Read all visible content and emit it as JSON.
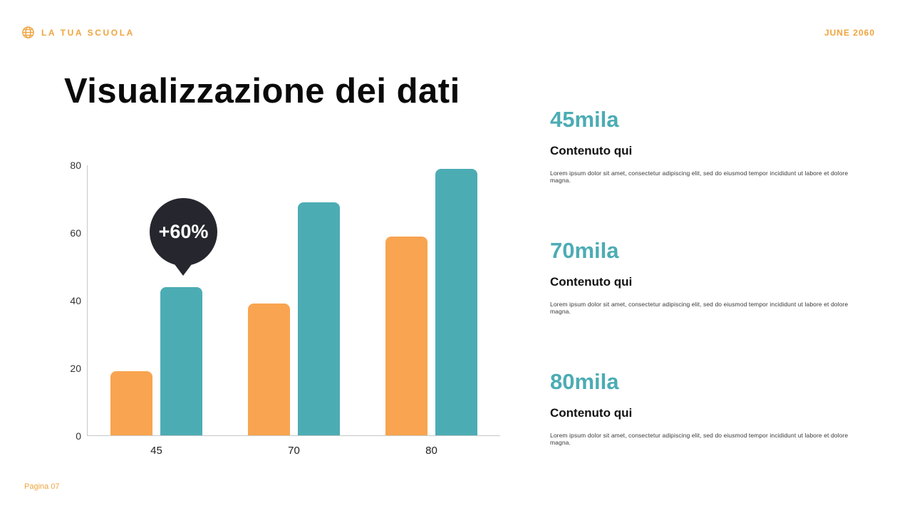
{
  "header": {
    "brand": "LA TUA SCUOLA",
    "date": "JUNE 2060"
  },
  "title": "Visualizzazione dei dati",
  "chart_data": {
    "type": "bar",
    "categories": [
      "45",
      "70",
      "80"
    ],
    "series": [
      {
        "name": "orange",
        "color": "#F9A450",
        "values": [
          19,
          39,
          59
        ]
      },
      {
        "name": "teal",
        "color": "#4CACB4",
        "values": [
          44,
          69,
          79
        ]
      }
    ],
    "title": "",
    "xlabel": "",
    "ylabel": "",
    "ylim": [
      0,
      80
    ],
    "yticks": [
      0,
      20,
      40,
      60,
      80
    ],
    "grid": false,
    "legend": "none",
    "annotation": {
      "label": "+60%",
      "target": "teal bar of category 45"
    }
  },
  "stats": [
    {
      "value": "45mila",
      "heading": "Contenuto qui",
      "body": "Lorem ipsum dolor sit amet, consectetur adipiscing elit, sed do eiusmod tempor incididunt ut labore et dolore magna."
    },
    {
      "value": "70mila",
      "heading": "Contenuto qui",
      "body": "Lorem ipsum dolor sit amet, consectetur adipiscing elit, sed do eiusmod tempor incididunt ut labore et dolore magna."
    },
    {
      "value": "80mila",
      "heading": "Contenuto qui",
      "body": "Lorem ipsum dolor sit amet, consectetur adipiscing elit, sed do eiusmod tempor incididunt ut labore et dolore magna."
    }
  ],
  "footer": {
    "page": "Pagina 07"
  },
  "colors": {
    "accent_orange": "#EFA43F",
    "bar_orange": "#F9A450",
    "bar_teal": "#4CACB4",
    "badge_dark": "#26262E"
  }
}
